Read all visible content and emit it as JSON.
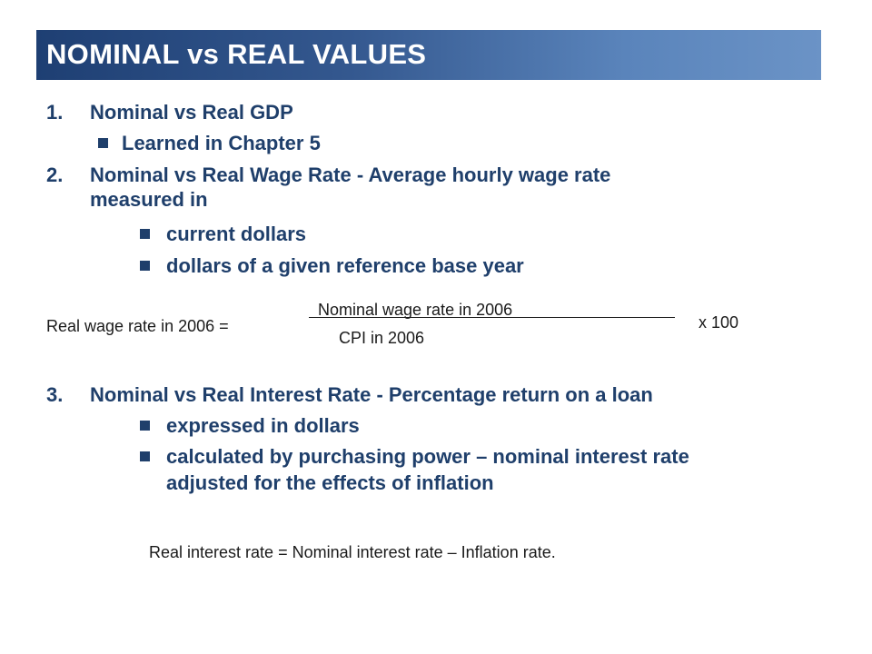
{
  "title": "NOMINAL vs REAL VALUES",
  "items": [
    {
      "number": "1.",
      "text": "Nominal vs Real GDP"
    },
    {
      "text": "Learned in Chapter 5"
    },
    {
      "number": "2.",
      "text": "Nominal vs Real Wage Rate - Average hourly wage rate",
      "text2": "measured in"
    },
    {
      "text": "current dollars"
    },
    {
      "text": "dollars of a given reference base year"
    },
    {
      "number": "3.",
      "text": "Nominal vs Real Interest Rate - Percentage return on a loan"
    },
    {
      "text": "expressed in dollars"
    },
    {
      "text": "calculated by purchasing power – nominal interest rate",
      "text2": "adjusted for the effects of inflation"
    }
  ],
  "wage_formula": {
    "lhs": "Real wage rate in 2006 =",
    "numerator": "Nominal wage rate in 2006",
    "denominator": "CPI in 2006",
    "multiplier": "x 100"
  },
  "interest_formula": "Real interest rate = Nominal interest rate – Inflation rate."
}
